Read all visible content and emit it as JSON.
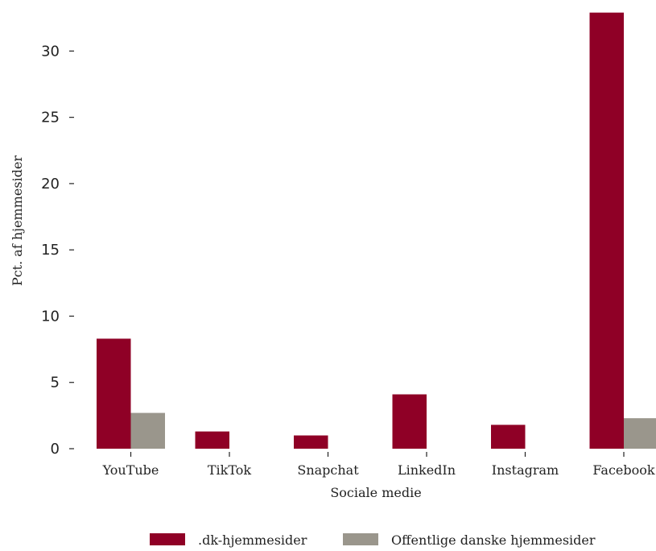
{
  "chart_data": {
    "type": "bar",
    "categories": [
      "YouTube",
      "TikTok",
      "Snapchat",
      "LinkedIn",
      "Instagram",
      "Facebook"
    ],
    "series": [
      {
        "name": ".dk-hjemmesider",
        "color": "#8f0026",
        "values": [
          8.3,
          1.3,
          1.0,
          4.1,
          1.8,
          32.9
        ]
      },
      {
        "name": "Offentlige danske hjemmesider",
        "color": "#9a968c",
        "values": [
          2.7,
          0,
          0,
          0,
          0,
          2.3
        ]
      }
    ],
    "xlabel": "Sociale medie",
    "ylabel": "Pct. af hjemmesider",
    "ylim": [
      0,
      33
    ],
    "yticks": [
      0,
      5,
      10,
      15,
      20,
      25,
      30
    ],
    "grid": false,
    "legend_position": "bottom"
  }
}
